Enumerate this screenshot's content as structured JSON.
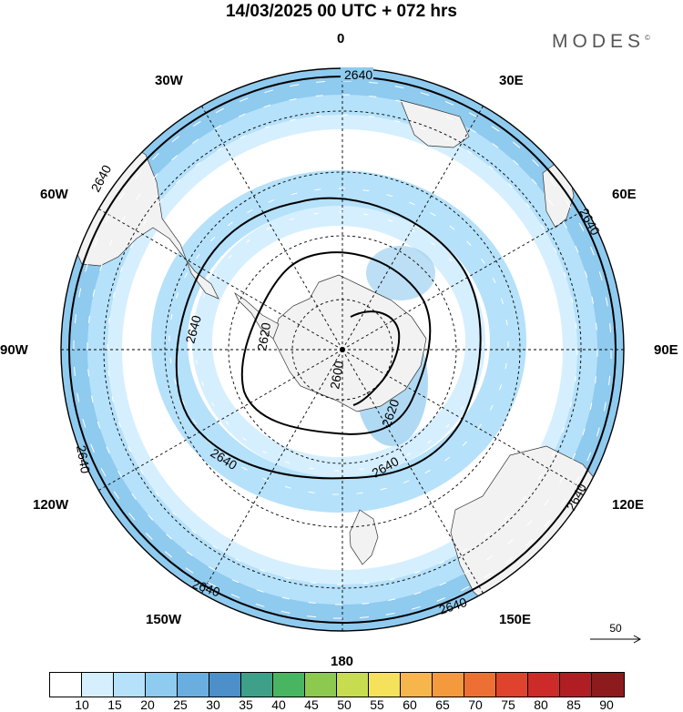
{
  "title": "14/03/2025  00 UTC  + 072 hrs",
  "brand": "MODES",
  "brand_mark": "©",
  "longitude_labels": {
    "n0": "0",
    "n30e": "30E",
    "n60e": "60E",
    "n90e": "90E",
    "n120e": "120E",
    "n150e": "150E",
    "n180": "180",
    "n150w": "150W",
    "n120w": "120W",
    "n90w": "90W",
    "n60w": "60W",
    "n30w": "30W"
  },
  "contour_labels": {
    "c2640": "2640",
    "c2620": "2620",
    "c2600": "2600"
  },
  "reference_vector": {
    "value": "50"
  },
  "colorbar": {
    "ticks": [
      "10",
      "15",
      "20",
      "25",
      "30",
      "35",
      "40",
      "45",
      "50",
      "55",
      "60",
      "65",
      "70",
      "75",
      "80",
      "85",
      "90"
    ],
    "colors": [
      "#ffffff",
      "#d6efff",
      "#b5e1fa",
      "#8fcaef",
      "#6aaee0",
      "#4d8fc8",
      "#3fa08a",
      "#49b560",
      "#8cc94e",
      "#c8dc4f",
      "#f6e25a",
      "#f6b64b",
      "#f39a3c",
      "#ee6f34",
      "#e0432d",
      "#cd2a2a",
      "#b01e24",
      "#8d1a1d"
    ]
  },
  "map": {
    "projection": "south polar stereographic",
    "land_color": "#f2f2f2",
    "background_color": "#ffffff"
  }
}
